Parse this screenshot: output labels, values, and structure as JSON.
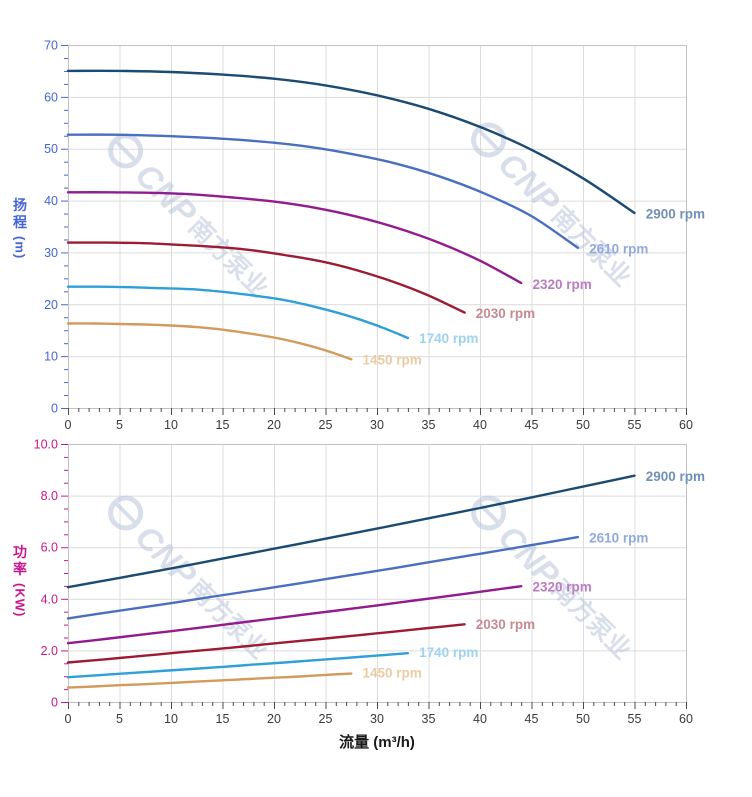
{
  "page": {
    "background": "#ffffff"
  },
  "watermark": {
    "brand": "CNP",
    "company": "南方泵业",
    "color": "#b9c6dc"
  },
  "x_axis": {
    "title": "流量 (m³/h)",
    "title_color": "#1a1a1a",
    "min": 0,
    "max": 60,
    "major_step": 5,
    "minor_step": 1,
    "tick_labels": [
      "0",
      "5",
      "10",
      "15",
      "20",
      "25",
      "30",
      "35",
      "40",
      "45",
      "50",
      "55",
      "60"
    ],
    "tick_label_color": "#3a3a3a",
    "tick_color": "#4a4a4a"
  },
  "chart_data": {
    "type": "line",
    "grid": true,
    "grid_color": "#dcdcdc",
    "border_color": "#c2c2c2",
    "legend_position": "end-of-curve",
    "charts": [
      {
        "id": "head",
        "y_title": "扬程",
        "y_unit": "(m)",
        "axis_color": "#4565d6",
        "y_min": 0,
        "y_max": 70,
        "y_major": 10,
        "y_minor": 2.5,
        "y_tick_labels": [
          "0",
          "10",
          "20",
          "30",
          "40",
          "50",
          "60",
          "70"
        ],
        "series": [
          {
            "name": "2900 rpm",
            "color": "#1b4a73",
            "label_color": "#7190b5",
            "label_anchor": [
              55.8,
              37.4
            ],
            "points": [
              [
                0,
                65
              ],
              [
                5,
                65
              ],
              [
                10,
                64.8
              ],
              [
                15,
                64.3
              ],
              [
                20,
                63.5
              ],
              [
                25,
                62.2
              ],
              [
                30,
                60.3
              ],
              [
                35,
                57.7
              ],
              [
                40,
                54.2
              ],
              [
                45,
                49.8
              ],
              [
                50,
                44.3
              ],
              [
                55,
                37.6
              ]
            ]
          },
          {
            "name": "2610 rpm",
            "color": "#4a6fc0",
            "label_color": "#92a9de",
            "label_anchor": [
              50.3,
              30.7
            ],
            "points": [
              [
                0,
                52.7
              ],
              [
                4.5,
                52.7
              ],
              [
                9,
                52.5
              ],
              [
                13.5,
                52.1
              ],
              [
                18,
                51.5
              ],
              [
                22.5,
                50.6
              ],
              [
                27,
                49.2
              ],
              [
                31.5,
                47.3
              ],
              [
                36,
                44.7
              ],
              [
                40.5,
                41.3
              ],
              [
                45,
                37
              ],
              [
                49.5,
                30.9
              ]
            ]
          },
          {
            "name": "2320 rpm",
            "color": "#921b8f",
            "label_color": "#bc7cc4",
            "label_anchor": [
              44.8,
              23.8
            ],
            "points": [
              [
                0,
                41.6
              ],
              [
                4,
                41.6
              ],
              [
                8,
                41.5
              ],
              [
                12,
                41.2
              ],
              [
                16,
                40.6
              ],
              [
                20,
                39.8
              ],
              [
                24,
                38.6
              ],
              [
                28,
                36.9
              ],
              [
                32,
                34.7
              ],
              [
                36,
                31.9
              ],
              [
                40,
                28.4
              ],
              [
                44,
                24.1
              ]
            ]
          },
          {
            "name": "2030 rpm",
            "color": "#9c1b35",
            "label_color": "#c68a92",
            "label_anchor": [
              39.3,
              18.2
            ],
            "points": [
              [
                0,
                31.9
              ],
              [
                3.5,
                31.9
              ],
              [
                7,
                31.8
              ],
              [
                10.5,
                31.5
              ],
              [
                14,
                31.1
              ],
              [
                17.5,
                30.5
              ],
              [
                21,
                29.5
              ],
              [
                24.5,
                28.3
              ],
              [
                28,
                26.6
              ],
              [
                31.5,
                24.4
              ],
              [
                35,
                21.7
              ],
              [
                38.5,
                18.4
              ]
            ]
          },
          {
            "name": "1740 rpm",
            "color": "#2f9fd9",
            "label_color": "#9dd2f0",
            "label_anchor": [
              33.8,
              13.4
            ],
            "points": [
              [
                0,
                23.4
              ],
              [
                3,
                23.4
              ],
              [
                6,
                23.3
              ],
              [
                9,
                23.1
              ],
              [
                12,
                22.9
              ],
              [
                15,
                22.4
              ],
              [
                18,
                21.7
              ],
              [
                21,
                20.8
              ],
              [
                24,
                19.5
              ],
              [
                27,
                17.9
              ],
              [
                30,
                15.9
              ],
              [
                33,
                13.5
              ]
            ]
          },
          {
            "name": "1450 rpm",
            "color": "#d29a5c",
            "label_color": "#ebcba2",
            "label_anchor": [
              28.3,
              9.3
            ],
            "points": [
              [
                0,
                16.3
              ],
              [
                2.5,
                16.3
              ],
              [
                5,
                16.2
              ],
              [
                7.5,
                16.1
              ],
              [
                10,
                15.9
              ],
              [
                12.5,
                15.6
              ],
              [
                15,
                15.1
              ],
              [
                17.5,
                14.4
              ],
              [
                20,
                13.6
              ],
              [
                22.5,
                12.5
              ],
              [
                25,
                11.1
              ],
              [
                27.5,
                9.4
              ]
            ]
          }
        ]
      },
      {
        "id": "power",
        "y_title": "功率",
        "y_unit": "(KW)",
        "axis_color": "#c9188f",
        "y_min": 0,
        "y_max": 10,
        "y_major": 2,
        "y_minor": 0.5,
        "y_tick_labels": [
          "0",
          "2.0",
          "4.0",
          "6.0",
          "8.0",
          "10.0"
        ],
        "series": [
          {
            "name": "2900 rpm",
            "color": "#1b4a73",
            "label_color": "#7190b5",
            "label_anchor": [
              55.8,
              8.75
            ],
            "points": [
              [
                0,
                4.45
              ],
              [
                5,
                4.81
              ],
              [
                10,
                5.18
              ],
              [
                15,
                5.56
              ],
              [
                20,
                5.94
              ],
              [
                25,
                6.33
              ],
              [
                30,
                6.72
              ],
              [
                35,
                7.12
              ],
              [
                40,
                7.52
              ],
              [
                45,
                7.93
              ],
              [
                50,
                8.35
              ],
              [
                55,
                8.77
              ]
            ]
          },
          {
            "name": "2610 rpm",
            "color": "#4a6fc0",
            "label_color": "#92a9de",
            "label_anchor": [
              50.3,
              6.35
            ],
            "points": [
              [
                0,
                3.24
              ],
              [
                4.5,
                3.51
              ],
              [
                9,
                3.77
              ],
              [
                13.5,
                4.05
              ],
              [
                18,
                4.32
              ],
              [
                22.5,
                4.6
              ],
              [
                27,
                4.89
              ],
              [
                31.5,
                5.18
              ],
              [
                36,
                5.48
              ],
              [
                40.5,
                5.78
              ],
              [
                45,
                6.08
              ],
              [
                49.5,
                6.39
              ]
            ]
          },
          {
            "name": "2320 rpm",
            "color": "#921b8f",
            "label_color": "#bc7cc4",
            "label_anchor": [
              44.8,
              4.45
            ],
            "points": [
              [
                0,
                2.28
              ],
              [
                4,
                2.46
              ],
              [
                8,
                2.65
              ],
              [
                12,
                2.84
              ],
              [
                16,
                3.04
              ],
              [
                20,
                3.24
              ],
              [
                24,
                3.44
              ],
              [
                28,
                3.64
              ],
              [
                32,
                3.85
              ],
              [
                36,
                4.06
              ],
              [
                40,
                4.27
              ],
              [
                44,
                4.49
              ]
            ]
          },
          {
            "name": "2030 rpm",
            "color": "#9c1b35",
            "label_color": "#c68a92",
            "label_anchor": [
              39.3,
              3.0
            ],
            "points": [
              [
                0,
                1.53
              ],
              [
                3.5,
                1.65
              ],
              [
                7,
                1.78
              ],
              [
                10.5,
                1.91
              ],
              [
                14,
                2.04
              ],
              [
                17.5,
                2.17
              ],
              [
                21,
                2.31
              ],
              [
                24.5,
                2.44
              ],
              [
                28,
                2.58
              ],
              [
                31.5,
                2.72
              ],
              [
                35,
                2.87
              ],
              [
                38.5,
                3.01
              ]
            ]
          },
          {
            "name": "1740 rpm",
            "color": "#2f9fd9",
            "label_color": "#9dd2f0",
            "label_anchor": [
              33.8,
              1.92
            ],
            "points": [
              [
                0,
                0.96
              ],
              [
                3,
                1.04
              ],
              [
                6,
                1.12
              ],
              [
                9,
                1.2
              ],
              [
                12,
                1.28
              ],
              [
                15,
                1.36
              ],
              [
                18,
                1.45
              ],
              [
                21,
                1.53
              ],
              [
                24,
                1.62
              ],
              [
                27,
                1.71
              ],
              [
                30,
                1.8
              ],
              [
                33,
                1.89
              ]
            ]
          },
          {
            "name": "1450 rpm",
            "color": "#d29a5c",
            "label_color": "#ebcba2",
            "label_anchor": [
              28.3,
              1.12
            ],
            "points": [
              [
                0,
                0.56
              ],
              [
                2.5,
                0.6
              ],
              [
                5,
                0.65
              ],
              [
                7.5,
                0.69
              ],
              [
                10,
                0.74
              ],
              [
                12.5,
                0.79
              ],
              [
                15,
                0.84
              ],
              [
                17.5,
                0.89
              ],
              [
                20,
                0.94
              ],
              [
                22.5,
                0.99
              ],
              [
                25,
                1.05
              ],
              [
                27.5,
                1.1
              ]
            ]
          }
        ]
      }
    ]
  }
}
